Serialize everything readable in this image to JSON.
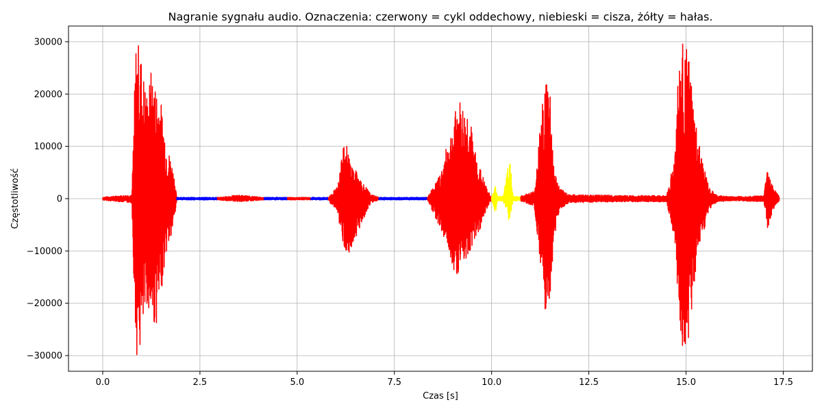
{
  "chart_data": {
    "type": "line",
    "title": "Nagranie sygnału audio. Oznaczenia: czerwony = cykl oddechowy, niebieski = cisza, żółty = hałas.",
    "xlabel": "Czas [s]",
    "ylabel": "Częstotliwość",
    "xlim": [
      -0.88,
      18.25
    ],
    "ylim": [
      -33000,
      33000
    ],
    "xticks": [
      0.0,
      2.5,
      5.0,
      7.5,
      10.0,
      12.5,
      15.0,
      17.5
    ],
    "xtick_labels": [
      "0.0",
      "2.5",
      "5.0",
      "7.5",
      "10.0",
      "12.5",
      "15.0",
      "17.5"
    ],
    "yticks": [
      -30000,
      -20000,
      -10000,
      0,
      10000,
      20000,
      30000
    ],
    "ytick_labels": [
      "−30000",
      "−20000",
      "−10000",
      "0",
      "10000",
      "20000",
      "30000"
    ],
    "grid": true,
    "colors": {
      "breath": "#ff0000",
      "silence": "#0000ff",
      "noise": "#ffff00"
    },
    "series": [
      {
        "category": "breath",
        "x": [
          0.0,
          0.75,
          0.85,
          0.95,
          1.05,
          1.15,
          1.25,
          1.35,
          1.45,
          1.55,
          1.65,
          1.75,
          1.85,
          1.9
        ],
        "ymax": [
          300,
          800,
          30000,
          30000,
          24000,
          20000,
          25000,
          22000,
          21000,
          16000,
          10000,
          8000,
          4000,
          500
        ],
        "ymin": [
          -300,
          -800,
          -30000,
          -30000,
          -26000,
          -20000,
          -24000,
          -25000,
          -22000,
          -15000,
          -10000,
          -8000,
          -4000,
          -500
        ]
      },
      {
        "category": "silence",
        "x": [
          1.9,
          2.95
        ],
        "ymax": [
          250,
          250
        ],
        "ymin": [
          -250,
          -250
        ]
      },
      {
        "category": "breath",
        "x": [
          2.95,
          3.5,
          4.15
        ],
        "ymax": [
          250,
          700,
          250
        ],
        "ymin": [
          -250,
          -600,
          -250
        ]
      },
      {
        "category": "silence",
        "x": [
          4.15,
          4.75
        ],
        "ymax": [
          250,
          250
        ],
        "ymin": [
          -250,
          -250
        ]
      },
      {
        "category": "breath",
        "x": [
          4.75,
          5.35
        ],
        "ymax": [
          250,
          250
        ],
        "ymin": [
          -250,
          -250
        ]
      },
      {
        "category": "silence",
        "x": [
          5.35,
          5.8
        ],
        "ymax": [
          250,
          250
        ],
        "ymin": [
          -250,
          -250
        ]
      },
      {
        "category": "breath",
        "x": [
          5.8,
          6.05,
          6.15,
          6.25,
          6.35,
          6.45,
          6.55,
          6.7,
          6.9,
          7.1
        ],
        "ymax": [
          250,
          2500,
          12000,
          11000,
          8000,
          6000,
          5000,
          3000,
          800,
          300
        ],
        "ymin": [
          -250,
          -3000,
          -8000,
          -10000,
          -11000,
          -9000,
          -7000,
          -4000,
          -800,
          -300
        ]
      },
      {
        "category": "silence",
        "x": [
          7.1,
          8.35
        ],
        "ymax": [
          250,
          250
        ],
        "ymin": [
          -250,
          -250
        ]
      },
      {
        "category": "breath",
        "x": [
          8.35,
          8.7,
          8.9,
          9.0,
          9.1,
          9.2,
          9.3,
          9.4,
          9.55,
          9.7,
          9.9,
          10.0
        ],
        "ymax": [
          250,
          5000,
          12000,
          14000,
          18000,
          19000,
          17000,
          18000,
          10000,
          6000,
          1500,
          400
        ],
        "ymin": [
          -250,
          -6000,
          -10000,
          -13000,
          -15000,
          -13000,
          -12000,
          -11000,
          -8000,
          -6000,
          -1500,
          -400
        ]
      },
      {
        "category": "noise",
        "x": [
          10.0,
          10.1,
          10.15,
          10.3,
          10.45,
          10.5,
          10.55,
          10.75
        ],
        "ymax": [
          400,
          2500,
          500,
          500,
          7500,
          6000,
          500,
          400
        ],
        "ymin": [
          -400,
          -3000,
          -500,
          -500,
          -4500,
          -3000,
          -500,
          -400
        ]
      },
      {
        "category": "breath",
        "x": [
          10.75,
          11.1,
          11.3,
          11.4,
          11.5,
          11.6,
          11.75,
          12.0,
          13.5,
          14.5
        ],
        "ymax": [
          500,
          1500,
          18000,
          24000,
          23000,
          6000,
          2000,
          800,
          600,
          600
        ],
        "ymin": [
          -500,
          -1500,
          -19000,
          -25000,
          -20000,
          -8000,
          -2000,
          -800,
          -600,
          -600
        ]
      },
      {
        "category": "breath",
        "x": [
          14.5,
          14.7,
          14.8,
          14.9,
          15.0,
          15.1,
          15.2,
          15.3,
          15.4,
          15.5,
          15.6,
          15.8,
          16.2,
          17.0,
          17.1,
          17.2,
          17.3,
          17.4
        ],
        "ymax": [
          600,
          8000,
          25000,
          30000,
          29000,
          26000,
          17000,
          12000,
          8000,
          5000,
          2000,
          600,
          400,
          600,
          6500,
          3000,
          1500,
          400
        ],
        "ymin": [
          -600,
          -8000,
          -25000,
          -30000,
          -29000,
          -26000,
          -17000,
          -12000,
          -8000,
          -5000,
          -2000,
          -600,
          -400,
          -600,
          -6000,
          -3000,
          -1500,
          -400
        ]
      }
    ]
  }
}
